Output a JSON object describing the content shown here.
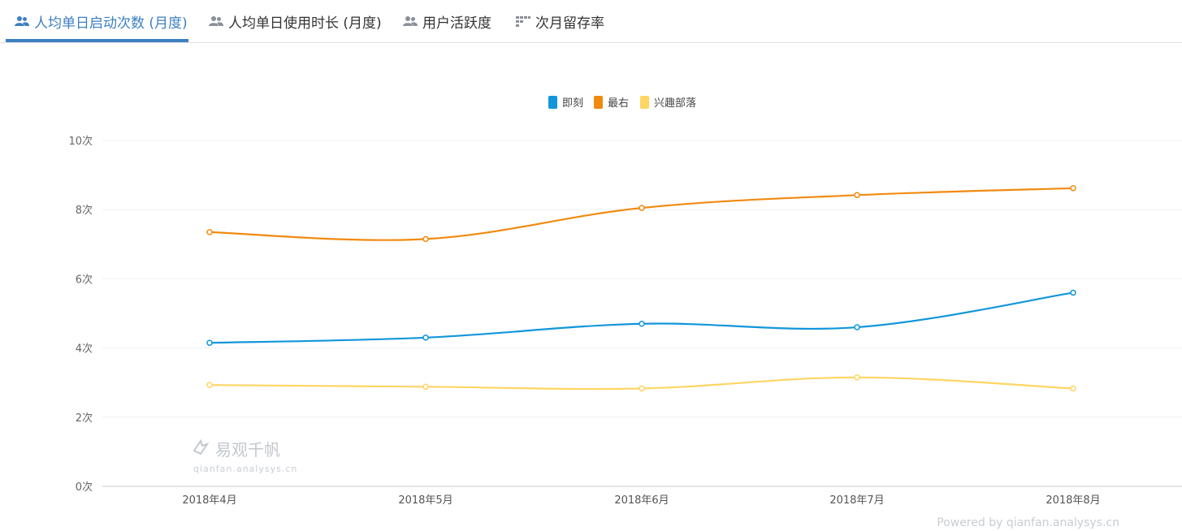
{
  "tabs": [
    {
      "label": "人均单日启动次数 (月度)",
      "icon": "users-icon",
      "active": true
    },
    {
      "label": "人均单日使用时长 (月度)",
      "icon": "users-icon",
      "active": false
    },
    {
      "label": "用户活跃度",
      "icon": "users-icon",
      "active": false
    },
    {
      "label": "次月留存率",
      "icon": "grid-icon",
      "active": false
    }
  ],
  "colors": {
    "accent": "#3d7fc1",
    "series": [
      "#1296db",
      "#f08a10",
      "#ffd563"
    ]
  },
  "watermark": {
    "brand": "易观千帆",
    "url": "qianfan.analysys.cn"
  },
  "footer": "Powered by qianfan.analysys.cn",
  "chart_data": {
    "type": "line",
    "smooth": true,
    "categories": [
      "2018年4月",
      "2018年5月",
      "2018年6月",
      "2018年7月",
      "2018年8月"
    ],
    "series": [
      {
        "name": "即刻",
        "color": "#1296db",
        "values": [
          4.15,
          4.3,
          4.7,
          4.6,
          5.6
        ]
      },
      {
        "name": "最右",
        "color": "#f08a10",
        "values": [
          7.35,
          7.15,
          8.05,
          8.42,
          8.62
        ]
      },
      {
        "name": "兴趣部落",
        "color": "#ffd563",
        "values": [
          2.93,
          2.88,
          2.83,
          3.15,
          2.83
        ]
      }
    ],
    "yticks": [
      "0次",
      "2次",
      "4次",
      "6次",
      "8次",
      "10次"
    ],
    "ylim": [
      0,
      10
    ],
    "legend": "top-center",
    "grid": true
  }
}
